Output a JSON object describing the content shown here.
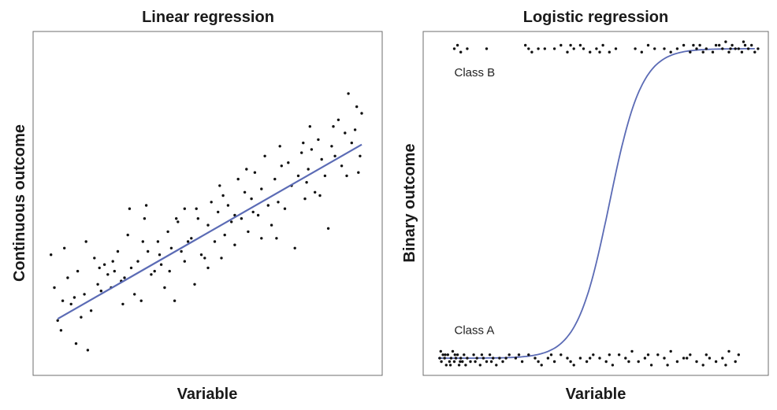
{
  "chart_data": [
    {
      "type": "scatter",
      "title": "Linear regression",
      "xlabel": "Variable",
      "ylabel": "Continuous outcome",
      "xlim": [
        0,
        10
      ],
      "ylim": [
        0,
        10
      ],
      "grid": false,
      "ticks_visible": false,
      "colors": {
        "points": "#111111",
        "fit_line": "#5b6bb5"
      },
      "fit_line": {
        "kind": "linear",
        "x": [
          0.5,
          9.6
        ],
        "y": [
          1.55,
          6.85
        ]
      },
      "series": [
        {
          "points": [
            [
              0.3,
              3.5
            ],
            [
              0.5,
              1.5
            ],
            [
              0.6,
              1.2
            ],
            [
              0.7,
              3.7
            ],
            [
              0.8,
              2.8
            ],
            [
              0.9,
              2.0
            ],
            [
              1.0,
              2.2
            ],
            [
              1.1,
              3.0
            ],
            [
              1.2,
              1.6
            ],
            [
              1.3,
              2.3
            ],
            [
              1.4,
              0.6
            ],
            [
              1.5,
              1.8
            ],
            [
              1.6,
              3.4
            ],
            [
              1.7,
              2.6
            ],
            [
              1.8,
              2.4
            ],
            [
              1.9,
              3.2
            ],
            [
              2.0,
              2.9
            ],
            [
              2.1,
              2.5
            ],
            [
              2.2,
              3.0
            ],
            [
              2.3,
              3.6
            ],
            [
              2.4,
              2.7
            ],
            [
              2.5,
              2.8
            ],
            [
              2.6,
              4.1
            ],
            [
              2.7,
              3.1
            ],
            [
              2.8,
              2.3
            ],
            [
              2.9,
              3.3
            ],
            [
              3.0,
              2.1
            ],
            [
              3.1,
              4.6
            ],
            [
              3.2,
              3.6
            ],
            [
              3.3,
              2.9
            ],
            [
              3.4,
              3.0
            ],
            [
              3.5,
              3.9
            ],
            [
              3.6,
              3.2
            ],
            [
              3.7,
              2.5
            ],
            [
              3.8,
              4.2
            ],
            [
              3.9,
              3.7
            ],
            [
              4.0,
              2.1
            ],
            [
              4.1,
              4.5
            ],
            [
              4.2,
              3.6
            ],
            [
              4.3,
              3.3
            ],
            [
              4.4,
              3.9
            ],
            [
              4.5,
              4.0
            ],
            [
              4.6,
              2.6
            ],
            [
              4.7,
              4.6
            ],
            [
              4.8,
              3.5
            ],
            [
              4.9,
              3.4
            ],
            [
              5.0,
              4.4
            ],
            [
              5.1,
              5.1
            ],
            [
              5.2,
              3.9
            ],
            [
              5.3,
              4.8
            ],
            [
              5.4,
              3.4
            ],
            [
              5.5,
              4.1
            ],
            [
              5.6,
              5.0
            ],
            [
              5.7,
              4.5
            ],
            [
              5.8,
              3.8
            ],
            [
              5.9,
              5.8
            ],
            [
              6.0,
              4.6
            ],
            [
              6.1,
              5.4
            ],
            [
              6.2,
              4.2
            ],
            [
              6.3,
              5.2
            ],
            [
              6.4,
              6.0
            ],
            [
              6.5,
              4.7
            ],
            [
              6.6,
              5.5
            ],
            [
              6.7,
              6.5
            ],
            [
              6.8,
              5.0
            ],
            [
              6.9,
              4.4
            ],
            [
              7.0,
              5.8
            ],
            [
              7.1,
              5.1
            ],
            [
              7.2,
              6.2
            ],
            [
              7.3,
              4.9
            ],
            [
              7.4,
              6.3
            ],
            [
              7.5,
              5.6
            ],
            [
              7.6,
              3.7
            ],
            [
              7.7,
              5.9
            ],
            [
              7.8,
              6.6
            ],
            [
              7.9,
              5.2
            ],
            [
              8.0,
              6.1
            ],
            [
              8.1,
              6.7
            ],
            [
              8.2,
              5.4
            ],
            [
              8.3,
              7.0
            ],
            [
              8.4,
              6.4
            ],
            [
              8.5,
              5.9
            ],
            [
              8.6,
              4.3
            ],
            [
              8.7,
              6.8
            ],
            [
              8.8,
              6.5
            ],
            [
              8.9,
              7.6
            ],
            [
              9.0,
              6.2
            ],
            [
              9.1,
              7.2
            ],
            [
              9.2,
              8.4
            ],
            [
              9.3,
              6.9
            ],
            [
              9.4,
              7.3
            ],
            [
              9.5,
              6.0
            ],
            [
              9.6,
              7.8
            ],
            [
              0.4,
              2.5
            ],
            [
              1.05,
              0.8
            ],
            [
              2.65,
              4.9
            ],
            [
              3.15,
              5.0
            ],
            [
              4.3,
              4.9
            ],
            [
              5.35,
              5.6
            ],
            [
              6.15,
              6.1
            ],
            [
              7.05,
              4.0
            ],
            [
              7.85,
              6.9
            ],
            [
              8.35,
              5.3
            ],
            [
              9.45,
              8.0
            ],
            [
              9.55,
              6.5
            ],
            [
              0.65,
              2.1
            ],
            [
              1.35,
              3.9
            ],
            [
              2.15,
              3.3
            ],
            [
              3.05,
              3.9
            ],
            [
              3.85,
              3.0
            ],
            [
              4.65,
              4.9
            ],
            [
              5.45,
              5.3
            ],
            [
              6.35,
              4.8
            ],
            [
              7.15,
              6.8
            ],
            [
              7.95,
              5.7
            ],
            [
              8.75,
              7.4
            ],
            [
              9.15,
              5.9
            ],
            [
              5.0,
              3.1
            ],
            [
              5.8,
              4.7
            ],
            [
              4.05,
              4.6
            ],
            [
              1.75,
              3.1
            ],
            [
              2.45,
              2.0
            ],
            [
              3.55,
              3.5
            ],
            [
              6.6,
              4.0
            ],
            [
              8.05,
              7.4
            ]
          ]
        }
      ]
    },
    {
      "type": "scatter",
      "title": "Logistic regression",
      "xlabel": "Variable",
      "ylabel": "Binary outcome",
      "xlim": [
        0,
        10
      ],
      "ylim": [
        0,
        1
      ],
      "grid": false,
      "ticks_visible": false,
      "colors": {
        "points": "#111111",
        "fit_line": "#5b6bb5"
      },
      "annotations": [
        {
          "text": "Class B",
          "x": 0.5,
          "y": 0.87
        },
        {
          "text": "Class A",
          "x": 0.5,
          "y": 0.12
        }
      ],
      "fit_line": {
        "kind": "logistic",
        "x0": 5.3,
        "k": 2.0,
        "lower": 0.05,
        "upper": 0.95,
        "x_range": [
          0.0,
          9.8
        ]
      },
      "series": [
        {
          "name": "Class A",
          "points": [
            [
              0.05,
              0.05
            ],
            [
              0.1,
              0.04
            ],
            [
              0.15,
              0.06
            ],
            [
              0.2,
              0.05
            ],
            [
              0.25,
              0.03
            ],
            [
              0.3,
              0.06
            ],
            [
              0.35,
              0.04
            ],
            [
              0.4,
              0.05
            ],
            [
              0.45,
              0.07
            ],
            [
              0.5,
              0.04
            ],
            [
              0.55,
              0.05
            ],
            [
              0.6,
              0.06
            ],
            [
              0.65,
              0.03
            ],
            [
              0.7,
              0.05
            ],
            [
              0.75,
              0.04
            ],
            [
              0.8,
              0.06
            ],
            [
              0.9,
              0.05
            ],
            [
              1.0,
              0.04
            ],
            [
              1.1,
              0.06
            ],
            [
              1.2,
              0.05
            ],
            [
              1.3,
              0.03
            ],
            [
              1.4,
              0.05
            ],
            [
              1.5,
              0.04
            ],
            [
              1.6,
              0.06
            ],
            [
              1.7,
              0.05
            ],
            [
              1.8,
              0.03
            ],
            [
              1.9,
              0.05
            ],
            [
              2.0,
              0.04
            ],
            [
              2.2,
              0.06
            ],
            [
              2.4,
              0.05
            ],
            [
              2.6,
              0.04
            ],
            [
              2.8,
              0.06
            ],
            [
              3.0,
              0.05
            ],
            [
              3.2,
              0.03
            ],
            [
              3.4,
              0.05
            ],
            [
              3.6,
              0.04
            ],
            [
              3.8,
              0.06
            ],
            [
              4.0,
              0.05
            ],
            [
              4.2,
              0.03
            ],
            [
              4.4,
              0.05
            ],
            [
              4.6,
              0.04
            ],
            [
              4.8,
              0.06
            ],
            [
              5.0,
              0.05
            ],
            [
              5.2,
              0.04
            ],
            [
              5.4,
              0.03
            ],
            [
              5.6,
              0.06
            ],
            [
              5.8,
              0.05
            ],
            [
              6.0,
              0.07
            ],
            [
              6.2,
              0.04
            ],
            [
              6.4,
              0.05
            ],
            [
              6.6,
              0.03
            ],
            [
              6.8,
              0.06
            ],
            [
              7.0,
              0.05
            ],
            [
              7.2,
              0.07
            ],
            [
              7.4,
              0.04
            ],
            [
              7.6,
              0.05
            ],
            [
              7.8,
              0.06
            ],
            [
              8.0,
              0.04
            ],
            [
              8.2,
              0.03
            ],
            [
              8.4,
              0.05
            ],
            [
              8.6,
              0.04
            ],
            [
              8.8,
              0.05
            ],
            [
              9.0,
              0.07
            ],
            [
              9.2,
              0.04
            ],
            [
              0.08,
              0.07
            ],
            [
              0.22,
              0.06
            ],
            [
              0.38,
              0.03
            ],
            [
              0.52,
              0.06
            ],
            [
              0.68,
              0.04
            ],
            [
              0.85,
              0.03
            ],
            [
              1.15,
              0.04
            ],
            [
              1.35,
              0.06
            ],
            [
              1.65,
              0.04
            ],
            [
              2.1,
              0.05
            ],
            [
              2.5,
              0.06
            ],
            [
              3.1,
              0.04
            ],
            [
              3.5,
              0.06
            ],
            [
              4.1,
              0.04
            ],
            [
              4.7,
              0.05
            ],
            [
              5.3,
              0.06
            ],
            [
              5.9,
              0.04
            ],
            [
              6.5,
              0.06
            ],
            [
              7.1,
              0.03
            ],
            [
              7.7,
              0.05
            ],
            [
              8.3,
              0.06
            ],
            [
              8.9,
              0.03
            ],
            [
              9.3,
              0.06
            ]
          ]
        },
        {
          "name": "Class B",
          "points": [
            [
              0.5,
              0.95
            ],
            [
              0.6,
              0.96
            ],
            [
              0.7,
              0.94
            ],
            [
              0.9,
              0.95
            ],
            [
              1.5,
              0.95
            ],
            [
              2.7,
              0.96
            ],
            [
              2.9,
              0.94
            ],
            [
              3.1,
              0.95
            ],
            [
              3.3,
              0.95
            ],
            [
              3.8,
              0.96
            ],
            [
              4.0,
              0.94
            ],
            [
              4.2,
              0.95
            ],
            [
              4.4,
              0.96
            ],
            [
              4.5,
              0.95
            ],
            [
              4.7,
              0.94
            ],
            [
              4.9,
              0.95
            ],
            [
              5.1,
              0.96
            ],
            [
              5.3,
              0.94
            ],
            [
              6.1,
              0.95
            ],
            [
              6.3,
              0.94
            ],
            [
              6.5,
              0.96
            ],
            [
              7.0,
              0.95
            ],
            [
              7.2,
              0.94
            ],
            [
              7.4,
              0.95
            ],
            [
              7.6,
              0.96
            ],
            [
              7.8,
              0.94
            ],
            [
              8.0,
              0.95
            ],
            [
              8.1,
              0.96
            ],
            [
              8.3,
              0.95
            ],
            [
              8.5,
              0.94
            ],
            [
              8.6,
              0.96
            ],
            [
              8.8,
              0.95
            ],
            [
              9.0,
              0.94
            ],
            [
              9.1,
              0.96
            ],
            [
              9.2,
              0.95
            ],
            [
              9.4,
              0.94
            ],
            [
              9.5,
              0.96
            ],
            [
              9.6,
              0.95
            ],
            [
              9.7,
              0.96
            ],
            [
              9.8,
              0.94
            ],
            [
              5.5,
              0.95
            ],
            [
              7.9,
              0.96
            ],
            [
              8.9,
              0.97
            ],
            [
              9.3,
              0.95
            ],
            [
              9.9,
              0.95
            ],
            [
              2.8,
              0.95
            ],
            [
              3.6,
              0.95
            ],
            [
              4.1,
              0.96
            ],
            [
              5.0,
              0.94
            ],
            [
              6.7,
              0.95
            ],
            [
              8.2,
              0.94
            ],
            [
              8.7,
              0.96
            ],
            [
              9.05,
              0.95
            ],
            [
              9.45,
              0.97
            ]
          ]
        }
      ]
    }
  ]
}
